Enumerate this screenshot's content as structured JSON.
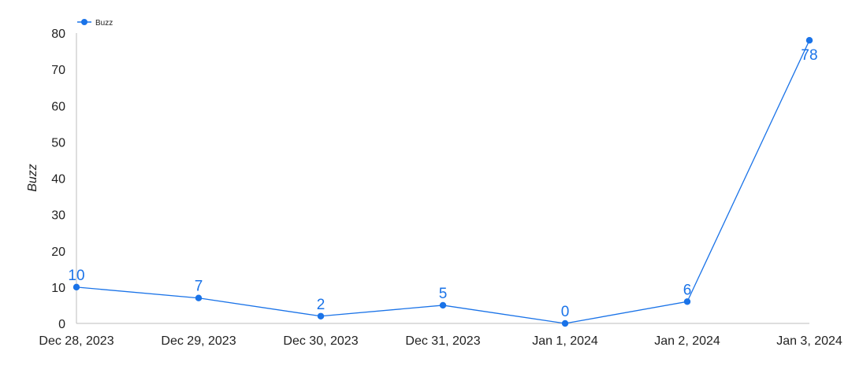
{
  "chart_data": {
    "type": "line",
    "x": [
      "Dec 28, 2023",
      "Dec 29, 2023",
      "Dec 30, 2023",
      "Dec 31, 2023",
      "Jan 1, 2024",
      "Jan 2, 2024",
      "Jan 3, 2024"
    ],
    "series": [
      {
        "name": "Buzz",
        "values": [
          10,
          7,
          2,
          5,
          0,
          6,
          78
        ],
        "color": "#1a73e8"
      }
    ],
    "ylabel": "Buzz",
    "xlabel": "",
    "ylim": [
      0,
      80
    ],
    "yticks": [
      "0",
      "10",
      "20",
      "30",
      "40",
      "50",
      "60",
      "70",
      "80"
    ],
    "grid": false,
    "legend": "top-left",
    "data_labels": [
      "10",
      "7",
      "2",
      "5",
      "0",
      "6",
      "78"
    ]
  }
}
